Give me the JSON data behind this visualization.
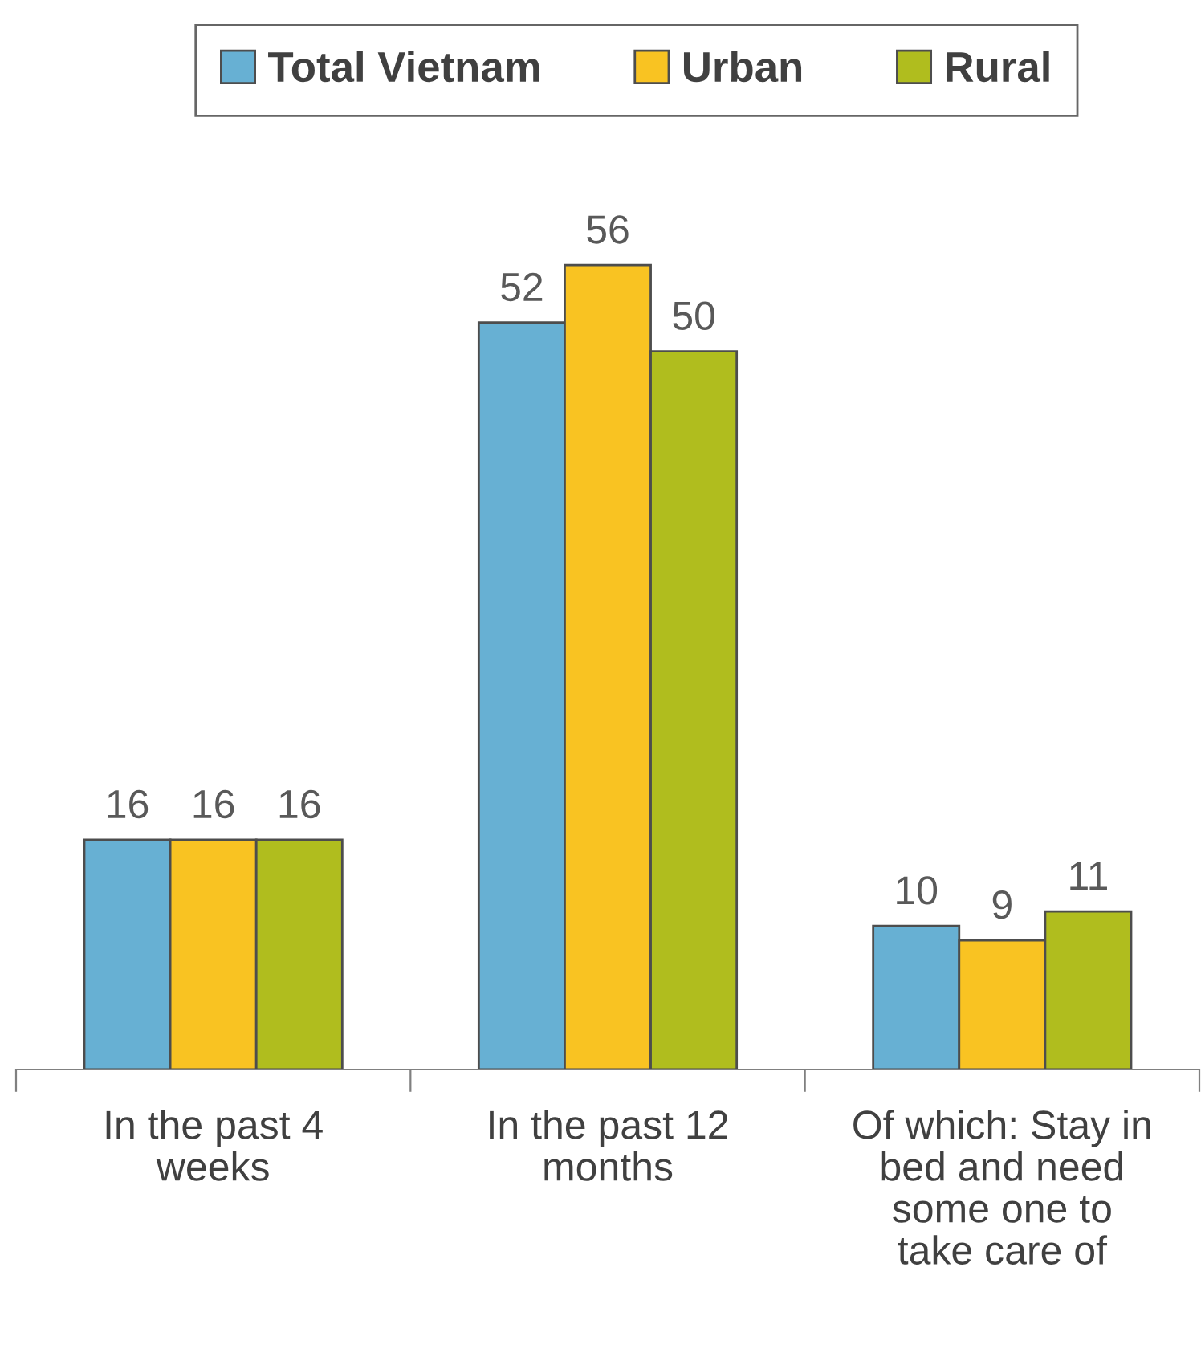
{
  "chart_data": {
    "type": "bar",
    "categories": [
      "In the past 4 weeks",
      "In the past 12 months",
      "Of which: Stay in bed and need some one to take care of"
    ],
    "series": [
      {
        "name": "Total Vietnam",
        "color": "#67b0d3",
        "values": [
          16,
          52,
          10
        ]
      },
      {
        "name": "Urban",
        "color": "#f9c322",
        "values": [
          16,
          56,
          9
        ]
      },
      {
        "name": "Rural",
        "color": "#b0bd1e",
        "values": [
          16,
          50,
          11
        ]
      }
    ],
    "data_labels": true,
    "legend": "top"
  }
}
